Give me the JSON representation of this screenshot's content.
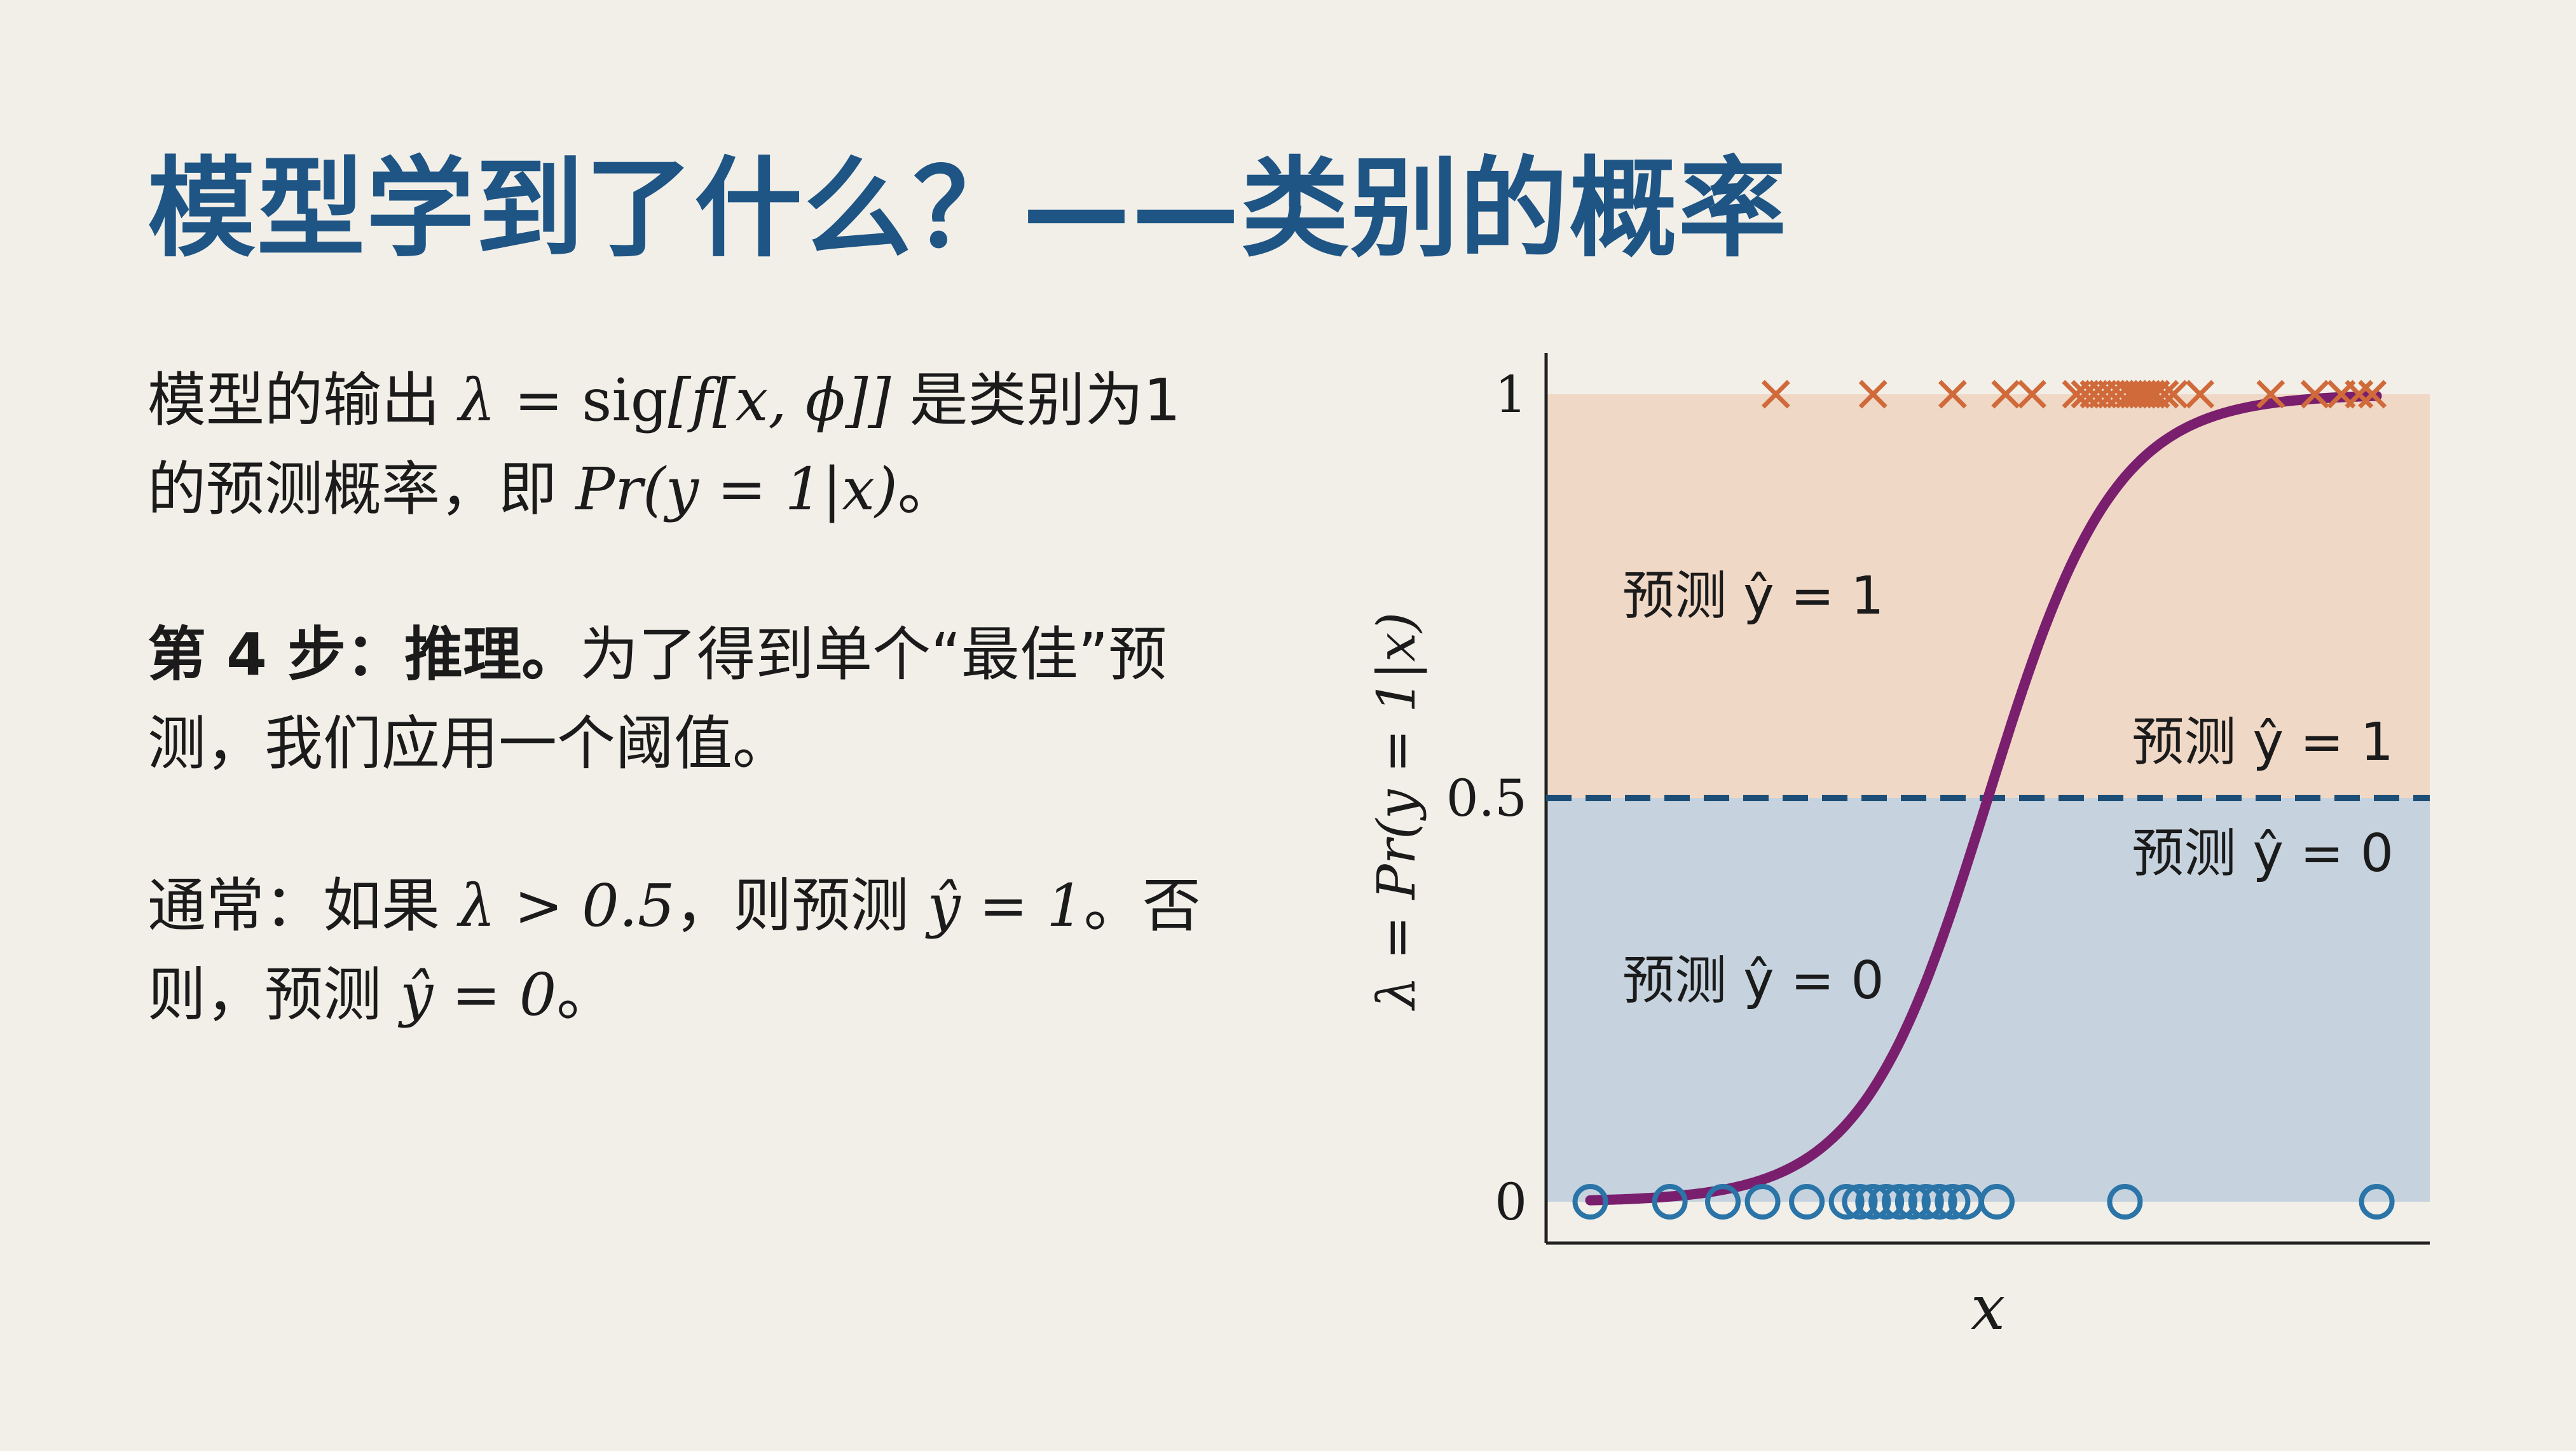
{
  "title": "模型学到了什么？——类别的概率",
  "para1": {
    "prefix": "模型的输出 ",
    "lambda": "λ",
    "eq": " = ",
    "sig": "sig",
    "expr": "[f[x, ϕ]]",
    "suffix": " 是类别为1",
    "line2_prefix": "的预测概率，即 ",
    "prob": "Pr(y = 1|x)",
    "line2_suffix": "。"
  },
  "para2": {
    "bold": "第 4 步：推理。",
    "rest_line1": "为了得到单个“最佳”预",
    "rest_line2": "测，我们应用一个阈值。"
  },
  "para3": {
    "line1_prefix": "通常：如果 ",
    "cond": "λ > 0.5",
    "line1_mid": "，则预测 ",
    "pred1": "ŷ = 1",
    "line1_suffix": "。否",
    "line2_prefix": "则，预测 ",
    "pred0": "ŷ = 0",
    "line2_suffix": "。"
  },
  "chart_data": {
    "type": "scatter",
    "xlabel": "x",
    "ylabel": "λ = Pr(y = 1|x)",
    "yticks": [
      "0",
      "0.5",
      "1"
    ],
    "ylim": [
      0,
      1
    ],
    "xlim": [
      0,
      1
    ],
    "threshold": 0.5,
    "regions": [
      {
        "label": "预测 ŷ = 1",
        "from": 0.5,
        "to": 1,
        "color": "#f0d8c6"
      },
      {
        "label": "预测 ŷ = 0",
        "from": 0,
        "to": 0.5,
        "color": "#c6d3de"
      }
    ],
    "threshold_labels": {
      "above": "预测 ŷ = 1",
      "below": "预测 ŷ = 0"
    },
    "curve": {
      "midpoint": 0.5,
      "steepness": 14,
      "color": "#7a1f6e"
    },
    "class1_x": [
      0.26,
      0.37,
      0.46,
      0.52,
      0.55,
      0.6,
      0.61,
      0.62,
      0.63,
      0.64,
      0.65,
      0.66,
      0.665,
      0.67,
      0.675,
      0.68,
      0.685,
      0.69,
      0.7,
      0.71,
      0.74,
      0.82,
      0.87,
      0.9,
      0.92,
      0.935
    ],
    "class0_x": [
      0.05,
      0.14,
      0.2,
      0.245,
      0.295,
      0.34,
      0.355,
      0.37,
      0.385,
      0.4,
      0.415,
      0.43,
      0.445,
      0.46,
      0.475,
      0.51,
      0.655,
      0.94
    ],
    "colors": {
      "class1": "#d06a3a",
      "class0": "#2a74a8",
      "threshold": "#1c4e78",
      "title": "#1e5585"
    }
  }
}
